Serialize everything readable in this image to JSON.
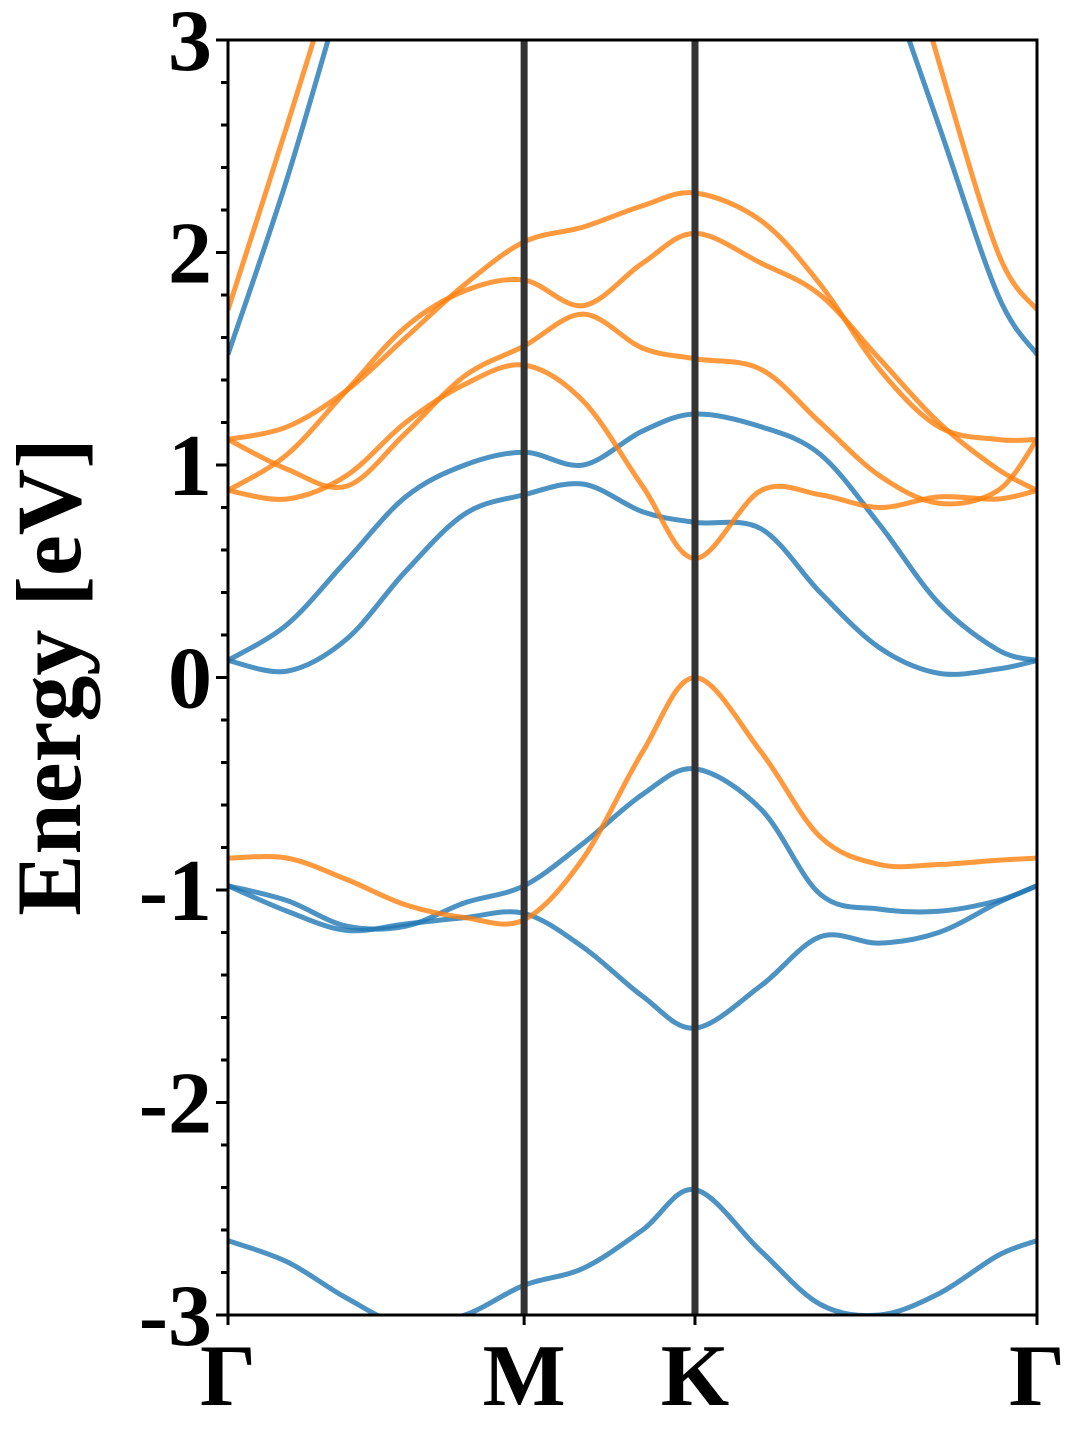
{
  "chart_data": {
    "type": "line",
    "ylabel": "Energy [eV]",
    "xlim": [
      0,
      2.732
    ],
    "ylim": [
      -3,
      3
    ],
    "yticks": [
      -3,
      -2,
      -1,
      0,
      1,
      2,
      3
    ],
    "xticks": [
      {
        "value": 0,
        "label": "Γ"
      },
      {
        "value": 1,
        "label": "M"
      },
      {
        "value": 1.577,
        "label": "K"
      },
      {
        "value": 2.732,
        "label": "Γ"
      }
    ],
    "x": [
      0,
      0.2,
      0.4,
      0.6,
      0.8,
      1.0,
      1.2,
      1.4,
      1.577,
      1.8,
      2.0,
      2.2,
      2.4,
      2.6,
      2.732
    ],
    "series": [
      {
        "color": "#1f77b4",
        "values": [
          -2.65,
          -2.75,
          -2.92,
          -3.05,
          -3.0,
          -2.86,
          -2.78,
          -2.6,
          -2.41,
          -2.7,
          -2.95,
          -3.0,
          -2.9,
          -2.72,
          -2.65
        ]
      },
      {
        "color": "#1f77b4",
        "values": [
          -0.98,
          -1.1,
          -1.19,
          -1.16,
          -1.13,
          -1.11,
          -1.27,
          -1.5,
          -1.65,
          -1.45,
          -1.22,
          -1.25,
          -1.2,
          -1.06,
          -0.98
        ]
      },
      {
        "color": "#1f77b4",
        "values": [
          -0.98,
          -1.05,
          -1.17,
          -1.17,
          -1.06,
          -0.98,
          -0.78,
          -0.55,
          -0.43,
          -0.62,
          -1.02,
          -1.09,
          -1.1,
          -1.05,
          -0.98
        ]
      },
      {
        "color": "#1f77b4",
        "values": [
          0.08,
          0.03,
          0.18,
          0.5,
          0.77,
          0.86,
          0.91,
          0.78,
          0.73,
          0.7,
          0.4,
          0.14,
          0.02,
          0.04,
          0.08
        ]
      },
      {
        "color": "#1f77b4",
        "values": [
          0.08,
          0.25,
          0.55,
          0.85,
          1.0,
          1.06,
          1.0,
          1.16,
          1.24,
          1.18,
          1.05,
          0.72,
          0.35,
          0.13,
          0.08
        ]
      },
      {
        "color": "#1f77b4",
        "values": [
          1.52,
          2.35,
          3.3,
          null,
          null,
          null,
          null,
          null,
          null,
          null,
          null,
          3.4,
          2.6,
          1.8,
          1.52
        ]
      },
      {
        "color": "#ff7f0e",
        "values": [
          -0.85,
          -0.85,
          -0.95,
          -1.07,
          -1.13,
          -1.14,
          -0.85,
          -0.35,
          0.0,
          -0.35,
          -0.75,
          -0.88,
          -0.88,
          -0.86,
          -0.85
        ]
      },
      {
        "color": "#ff7f0e",
        "values": [
          0.88,
          0.84,
          0.95,
          1.2,
          1.38,
          1.47,
          1.3,
          0.9,
          0.56,
          0.88,
          0.86,
          0.8,
          0.85,
          0.84,
          0.88
        ]
      },
      {
        "color": "#ff7f0e",
        "values": [
          0.88,
          1.05,
          1.35,
          1.65,
          1.82,
          1.87,
          1.75,
          1.95,
          2.09,
          1.95,
          1.8,
          1.5,
          1.2,
          0.98,
          0.88
        ]
      },
      {
        "color": "#ff7f0e",
        "values": [
          1.12,
          0.98,
          0.9,
          1.15,
          1.42,
          1.56,
          1.71,
          1.55,
          1.5,
          1.45,
          1.2,
          0.95,
          0.82,
          0.88,
          1.12
        ]
      },
      {
        "color": "#ff7f0e",
        "values": [
          1.12,
          1.18,
          1.35,
          1.6,
          1.85,
          2.05,
          2.12,
          2.22,
          2.28,
          2.15,
          1.85,
          1.45,
          1.18,
          1.12,
          1.12
        ]
      },
      {
        "color": "#ff7f0e",
        "values": [
          1.73,
          2.6,
          3.5,
          null,
          null,
          null,
          null,
          null,
          null,
          null,
          null,
          3.9,
          2.9,
          2.0,
          1.73
        ]
      }
    ]
  }
}
